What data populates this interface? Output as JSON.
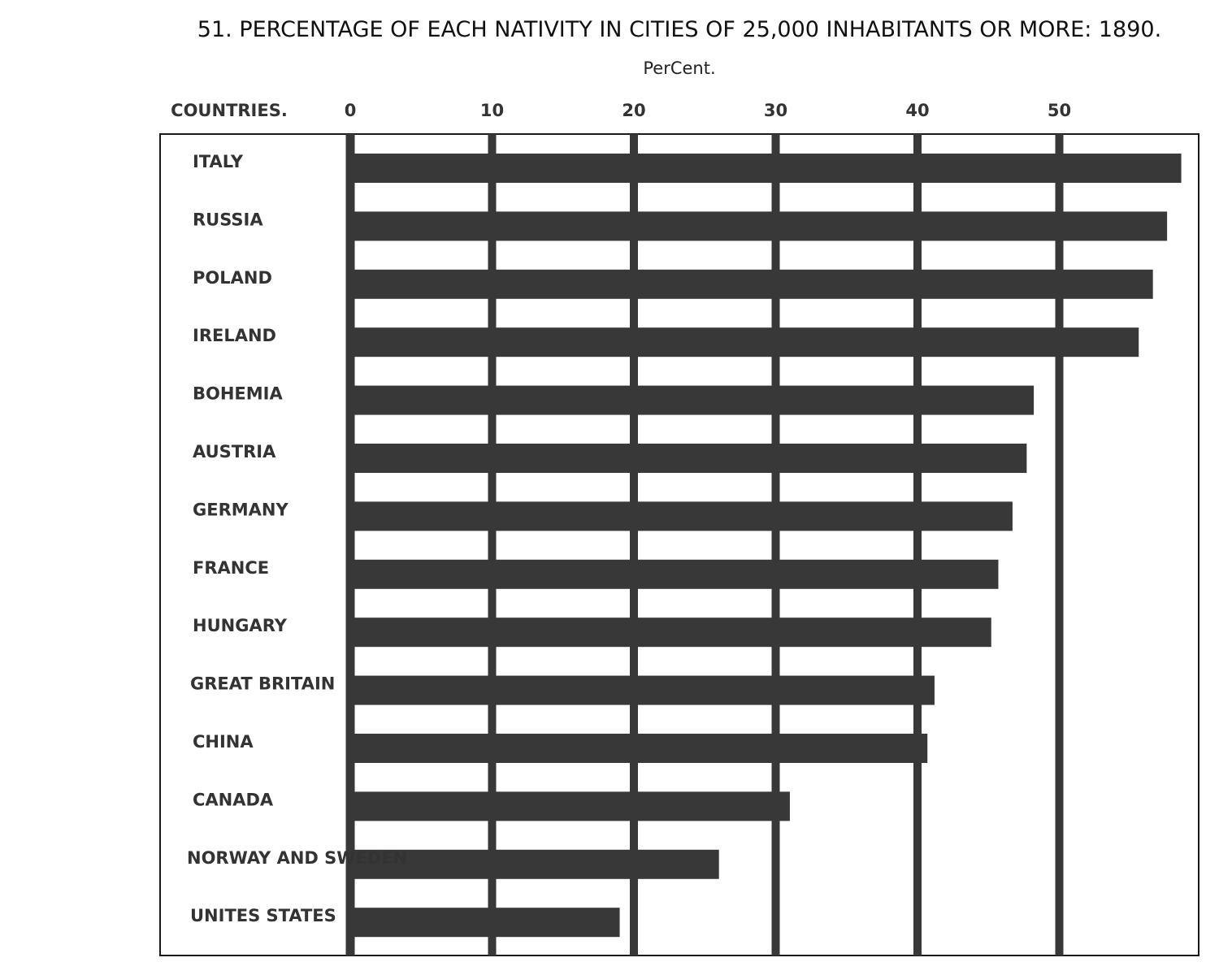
{
  "chart_data": {
    "type": "bar",
    "orientation": "horizontal",
    "title": "51. PERCENTAGE OF EACH NATIVITY IN CITIES OF 25,000 INHABITANTS OR MORE: 1890.",
    "unit_label": "PerCent.",
    "category_header": "COUNTRIES.",
    "categories": [
      "ITALY",
      "RUSSIA",
      "POLAND",
      "IRELAND",
      "BOHEMIA",
      "AUSTRIA",
      "GERMANY",
      "FRANCE",
      "HUNGARY",
      "GREAT BRITAIN",
      "CHINA",
      "CANADA",
      "NORWAY AND SWEDEN",
      "UNITES STATES"
    ],
    "values": [
      58.6,
      57.6,
      56.6,
      55.6,
      48.2,
      47.7,
      46.7,
      45.7,
      45.2,
      41.2,
      40.7,
      31.0,
      26.0,
      19.0
    ],
    "xticks": [
      "0",
      "10",
      "20",
      "30",
      "40",
      "50"
    ],
    "xlim": [
      0,
      60
    ],
    "grid": true,
    "bar_color": "#383838",
    "grid_color": "#383838",
    "frame_color": "#1a1a1a"
  }
}
